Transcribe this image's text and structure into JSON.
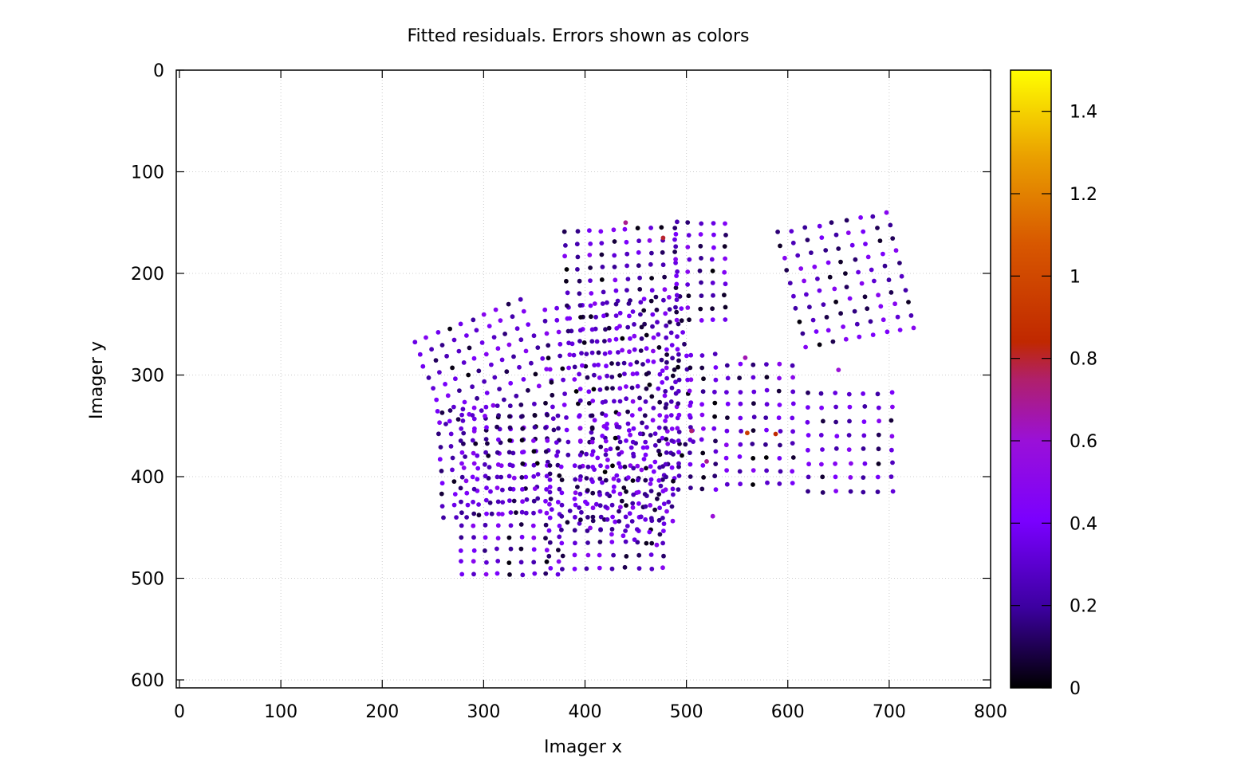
{
  "chart_data": {
    "type": "scatter",
    "title": "Fitted residuals. Errors shown as colors",
    "xlabel": "Imager x",
    "ylabel": "Imager y",
    "xlim": [
      0,
      800
    ],
    "ylim": [
      610,
      0
    ],
    "y_reversed": true,
    "xticks": [
      0,
      100,
      200,
      300,
      400,
      500,
      600,
      700,
      800
    ],
    "yticks": [
      0,
      100,
      200,
      300,
      400,
      500,
      600
    ],
    "grid": true,
    "colorbar": {
      "range": [
        0,
        1.5
      ],
      "ticks": [
        0,
        0.2,
        0.4,
        0.6,
        0.8,
        1,
        1.2,
        1.4
      ],
      "palette": "gnuplot black-blue-purple-red-yellow",
      "colors": [
        "#000000",
        "#3c00a0",
        "#8000ff",
        "#a01ecc",
        "#c02800",
        "#e07000",
        "#ffff00"
      ]
    },
    "point_groups": [
      {
        "name": "",
        "origin": [
          232,
          268
        ],
        "u": [
          11.5,
          -4.6
        ],
        "v": [
          4.4,
          11.4
        ],
        "nu": 10,
        "nv": 8
      },
      {
        "name": "",
        "origin": [
          255,
          335
        ],
        "u": [
          11.8,
          -0.9
        ],
        "v": [
          0.6,
          11.8
        ],
        "nu": 10,
        "nv": 10
      },
      {
        "name": "",
        "origin": [
          278,
          340
        ],
        "u": [
          12.0,
          0.0
        ],
        "v": [
          0.0,
          12.0
        ],
        "nu": 9,
        "nv": 14
      },
      {
        "name": "",
        "origin": [
          360,
          235
        ],
        "u": [
          12.2,
          -1.2
        ],
        "v": [
          1.0,
          12.0
        ],
        "nu": 12,
        "nv": 13
      },
      {
        "name": "",
        "origin": [
          365,
          390
        ],
        "u": [
          12.5,
          0.0
        ],
        "v": [
          0.0,
          12.5
        ],
        "nu": 10,
        "nv": 9
      },
      {
        "name": "",
        "origin": [
          380,
          160
        ],
        "u": [
          12.0,
          -0.6
        ],
        "v": [
          0.4,
          12.0
        ],
        "nu": 10,
        "nv": 12
      },
      {
        "name": "",
        "origin": [
          410,
          345
        ],
        "u": [
          11.0,
          3.0
        ],
        "v": [
          -3.0,
          11.0
        ],
        "nu": 9,
        "nv": 10
      },
      {
        "name": "",
        "origin": [
          395,
          300
        ],
        "u": [
          13.0,
          0.0
        ],
        "v": [
          0.0,
          13.0
        ],
        "nu": 8,
        "nv": 12
      },
      {
        "name": "",
        "origin": [
          480,
          280
        ],
        "u": [
          12.0,
          0.0
        ],
        "v": [
          0.0,
          12.0
        ],
        "nu": 5,
        "nv": 12
      },
      {
        "name": "",
        "origin": [
          540,
          290
        ],
        "u": [
          13.0,
          0.0
        ],
        "v": [
          0.0,
          13.0
        ],
        "nu": 6,
        "nv": 10
      },
      {
        "name": "",
        "origin": [
          590,
          160
        ],
        "u": [
          13.5,
          -2.4
        ],
        "v": [
          3.0,
          12.5
        ],
        "nu": 9,
        "nv": 10
      },
      {
        "name": "",
        "origin": [
          620,
          318
        ],
        "u": [
          13.8,
          0.0
        ],
        "v": [
          0.0,
          13.8
        ],
        "nu": 7,
        "nv": 8
      },
      {
        "name": "",
        "origin": [
          490,
          150
        ],
        "u": [
          12.0,
          0.0
        ],
        "v": [
          0.0,
          12.0
        ],
        "nu": 5,
        "nv": 9
      }
    ],
    "outlier_points": [
      {
        "x": 477,
        "y": 165,
        "error": 0.8
      },
      {
        "x": 505,
        "y": 355,
        "error": 0.75
      },
      {
        "x": 560,
        "y": 357,
        "error": 0.95
      },
      {
        "x": 588,
        "y": 358,
        "error": 0.85
      },
      {
        "x": 520,
        "y": 385,
        "error": 0.7
      },
      {
        "x": 558,
        "y": 283,
        "error": 0.65
      },
      {
        "x": 526,
        "y": 439,
        "error": 0.6
      },
      {
        "x": 650,
        "y": 295,
        "error": 0.6
      },
      {
        "x": 440,
        "y": 150,
        "error": 0.7
      }
    ],
    "error_distribution": {
      "min": 0,
      "max": 0.5,
      "typical_max": 0.5
    }
  }
}
